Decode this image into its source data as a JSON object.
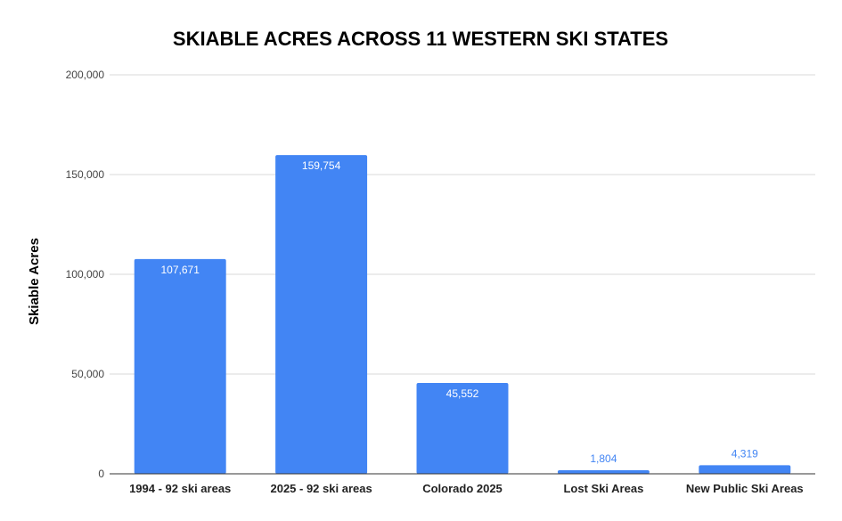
{
  "chart_data": {
    "type": "bar",
    "title": "SKIABLE ACRES ACROSS 11 WESTERN SKI STATES",
    "xlabel": "",
    "ylabel": "Skiable Acres",
    "categories": [
      "1994 - 92 ski areas",
      "2025 - 92 ski areas",
      "Colorado 2025",
      "Lost Ski Areas",
      "New Public Ski Areas"
    ],
    "values": [
      107671,
      159754,
      45552,
      1804,
      4319
    ],
    "data_labels": [
      "107,671",
      "159,754",
      "45,552",
      "1,804",
      "4,319"
    ],
    "ylim": [
      0,
      200000
    ],
    "yticks": [
      0,
      50000,
      100000,
      150000,
      200000
    ],
    "ytick_labels": [
      "0",
      "50,000",
      "100,000",
      "150,000",
      "200,000"
    ],
    "grid": true,
    "legend": "none",
    "bar_color": "#4285F4"
  }
}
